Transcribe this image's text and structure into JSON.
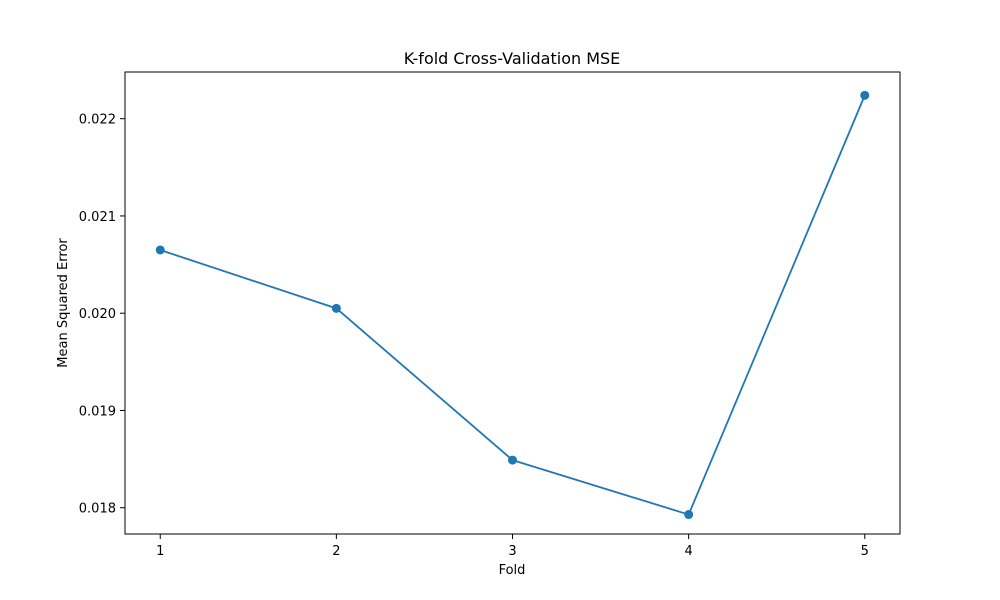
{
  "chart_data": {
    "type": "line",
    "title": "K-fold Cross-Validation MSE",
    "xlabel": "Fold",
    "ylabel": "Mean Squared Error",
    "x": [
      1,
      2,
      3,
      4,
      5
    ],
    "x_ticks": [
      "1",
      "2",
      "3",
      "4",
      "5"
    ],
    "xlim": [
      0.8,
      5.2
    ],
    "y_ticks": [
      0.018,
      0.019,
      0.02,
      0.021,
      0.022
    ],
    "y_tick_labels": [
      "0.018",
      "0.019",
      "0.020",
      "0.021",
      "0.022"
    ],
    "ylim": [
      0.01773,
      0.02248
    ],
    "grid": false,
    "series": [
      {
        "values": [
          0.02065,
          0.02005,
          0.01849,
          0.01793,
          0.02224
        ],
        "color": "#1f77b4",
        "marker": "circle"
      }
    ]
  }
}
